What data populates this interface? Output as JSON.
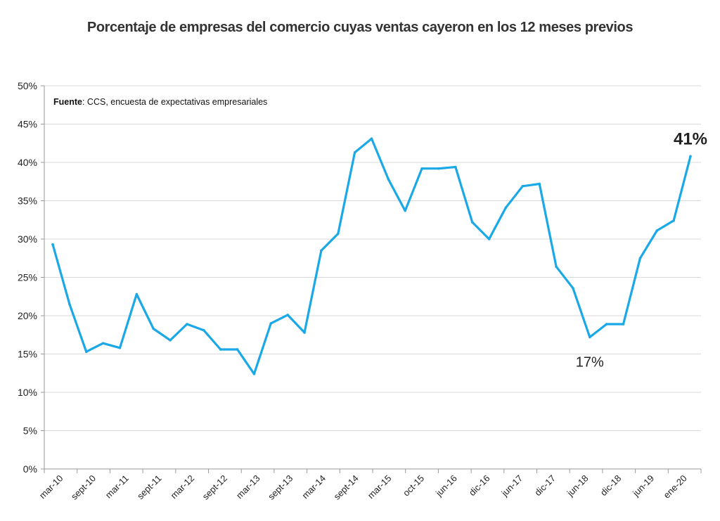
{
  "chart_data": {
    "type": "line",
    "title": "Porcentaje de empresas del comercio cuyas ventas cayeron en los 12 meses previos",
    "xlabel": "",
    "ylabel": "",
    "ylim": [
      0,
      50
    ],
    "grid": true,
    "source_label": "Fuente",
    "source_text": ": CCS, encuesta de expectativas empresariales",
    "x_tick_labels": [
      "mar-10",
      "sept-10",
      "mar-11",
      "sept-11",
      "mar-12",
      "sept-12",
      "mar-13",
      "sept-13",
      "mar-14",
      "sept-14",
      "mar-15",
      "oct-15",
      "jun-16",
      "dic-16",
      "jun-17",
      "dic-17",
      "jun-18",
      "dic-18",
      "jun-19",
      "ene-20"
    ],
    "y_tick_labels": [
      "0%",
      "5%",
      "10%",
      "15%",
      "20%",
      "25%",
      "30%",
      "35%",
      "40%",
      "45%",
      "50%"
    ],
    "line_color": "#1aa9e6",
    "series": [
      {
        "values": [
          29.3,
          21.5,
          15.3,
          16.4,
          15.8,
          22.8,
          18.3,
          16.8,
          18.9,
          18.1,
          15.6,
          15.6,
          12.4,
          19.0,
          20.1,
          17.8,
          28.5,
          30.7,
          41.3,
          43.1,
          37.8,
          33.7,
          39.2,
          39.2,
          39.4,
          32.2,
          30.0,
          34.1,
          36.9,
          37.2,
          26.4,
          23.6,
          17.2,
          18.9,
          18.9,
          27.5,
          31.1,
          32.4,
          40.8
        ]
      }
    ],
    "annotations": [
      {
        "text": "41%",
        "index": 38
      },
      {
        "text": "17%",
        "index": 32
      }
    ]
  }
}
